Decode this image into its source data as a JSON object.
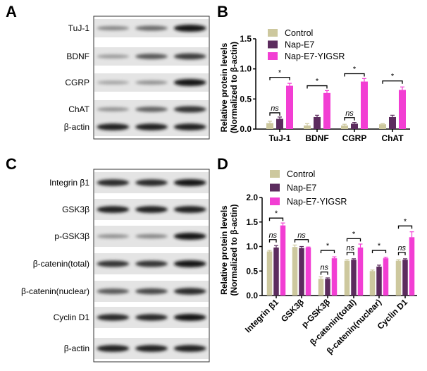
{
  "panels": {
    "a": "A",
    "b": "B",
    "c": "C",
    "d": "D"
  },
  "blots": {
    "a": {
      "rows": [
        {
          "label": "TuJ-1",
          "lanes": [
            0.35,
            0.5,
            0.95
          ]
        },
        {
          "label": "BDNF",
          "lanes": [
            0.25,
            0.6,
            0.75
          ]
        },
        {
          "label": "CGRP",
          "lanes": [
            0.2,
            0.3,
            0.95
          ]
        },
        {
          "label": "ChAT",
          "lanes": [
            0.3,
            0.55,
            0.8
          ]
        },
        {
          "label": "β-actin",
          "lanes": [
            0.9,
            0.9,
            0.9
          ]
        }
      ]
    },
    "c": {
      "rows": [
        {
          "label": "Integrin β1",
          "lanes": [
            0.85,
            0.85,
            0.95
          ]
        },
        {
          "label": "GSK3β",
          "lanes": [
            0.9,
            0.9,
            0.9
          ]
        },
        {
          "label": "p-GSK3β",
          "lanes": [
            0.3,
            0.35,
            0.95
          ]
        },
        {
          "label": "β-catenin(total)",
          "lanes": [
            0.8,
            0.8,
            0.95
          ]
        },
        {
          "label": "β-catenin(nuclear)",
          "lanes": [
            0.6,
            0.7,
            0.85
          ]
        },
        {
          "label": "Cyclin D1",
          "lanes": [
            0.85,
            0.85,
            0.95
          ]
        },
        {
          "label": "β-actin",
          "lanes": [
            0.9,
            0.9,
            0.9
          ]
        }
      ]
    }
  },
  "chart_data": [
    {
      "type": "bar",
      "panel": "B",
      "ylabel": [
        "Relative protein levels",
        "(Normalized to β-actin)"
      ],
      "ylim": [
        0,
        1.5
      ],
      "yticks": [
        "0.0",
        "0.5",
        "1.0",
        "1.5"
      ],
      "categories": [
        "TuJ-1",
        "BDNF",
        "CGRP",
        "ChAT"
      ],
      "legend_placement": "top-left",
      "series": [
        {
          "name": "Control",
          "color": "#cdc89e",
          "values": [
            0.1,
            0.06,
            0.06,
            0.08
          ],
          "errors": [
            0.03,
            0.03,
            0.02,
            0.01
          ]
        },
        {
          "name": "Nap-E7",
          "color": "#5c2c5e",
          "values": [
            0.17,
            0.2,
            0.09,
            0.2
          ],
          "errors": [
            0.03,
            0.03,
            0.02,
            0.03
          ]
        },
        {
          "name": "Nap-E7-YIGSR",
          "color": "#f23ed3",
          "values": [
            0.72,
            0.6,
            0.79,
            0.65
          ],
          "errors": [
            0.04,
            0.04,
            0.05,
            0.05
          ]
        }
      ],
      "annotations": [
        {
          "category": 0,
          "from": 0,
          "to": 2,
          "text": "*",
          "level": 0.86
        },
        {
          "category": 0,
          "from": 0,
          "to": 1,
          "text": "ns",
          "level": 0.27
        },
        {
          "category": 1,
          "from": 0,
          "to": 2,
          "text": "*",
          "level": 0.72
        },
        {
          "category": 2,
          "from": 0,
          "to": 2,
          "text": "*",
          "level": 0.92
        },
        {
          "category": 2,
          "from": 0,
          "to": 1,
          "text": "ns",
          "level": 0.19
        },
        {
          "category": 3,
          "from": 0,
          "to": 2,
          "text": "*",
          "level": 0.8
        }
      ]
    },
    {
      "type": "bar",
      "panel": "D",
      "ylabel": [
        "Relative protein levels",
        "(Normalized to β-actin)"
      ],
      "ylim": [
        0,
        2.0
      ],
      "yticks": [
        "0.0",
        "0.5",
        "1.0",
        "1.5",
        "2.0"
      ],
      "categories": [
        "Integrin β1",
        "GSK3β",
        "p-GSK3β",
        "β-catenin(total)",
        "β-catenin(nuclear)",
        "Cyclin D1"
      ],
      "legend_placement": "top-left",
      "series": [
        {
          "name": "Control",
          "color": "#cdc89e",
          "values": [
            0.9,
            0.99,
            0.34,
            0.71,
            0.5,
            0.71
          ],
          "errors": [
            0.02,
            0.04,
            0.04,
            0.02,
            0.02,
            0.02
          ]
        },
        {
          "name": "Nap-E7",
          "color": "#5c2c5e",
          "values": [
            0.98,
            0.97,
            0.34,
            0.73,
            0.59,
            0.73
          ],
          "errors": [
            0.04,
            0.03,
            0.02,
            0.02,
            0.03,
            0.02
          ]
        },
        {
          "name": "Nap-E7-YIGSR",
          "color": "#f23ed3",
          "values": [
            1.43,
            0.98,
            0.76,
            0.98,
            0.76,
            1.19
          ],
          "errors": [
            0.05,
            0.01,
            0.03,
            0.07,
            0.02,
            0.11
          ]
        }
      ],
      "annotations": [
        {
          "category": 0,
          "from": 0,
          "to": 2,
          "text": "*",
          "level": 1.58
        },
        {
          "category": 0,
          "from": 0,
          "to": 1,
          "text": "ns",
          "level": 1.14
        },
        {
          "category": 1,
          "from": 0,
          "to": 2,
          "text": "ns",
          "level": 1.14
        },
        {
          "category": 2,
          "from": 0,
          "to": 2,
          "text": "*",
          "level": 0.92
        },
        {
          "category": 2,
          "from": 0,
          "to": 1,
          "text": "ns",
          "level": 0.48
        },
        {
          "category": 3,
          "from": 0,
          "to": 2,
          "text": "*",
          "level": 1.16
        },
        {
          "category": 3,
          "from": 0,
          "to": 1,
          "text": "ns",
          "level": 0.88
        },
        {
          "category": 4,
          "from": 0,
          "to": 2,
          "text": "*",
          "level": 0.92
        },
        {
          "category": 5,
          "from": 0,
          "to": 2,
          "text": "*",
          "level": 1.42
        },
        {
          "category": 5,
          "from": 0,
          "to": 1,
          "text": "ns",
          "level": 0.88
        }
      ]
    }
  ]
}
